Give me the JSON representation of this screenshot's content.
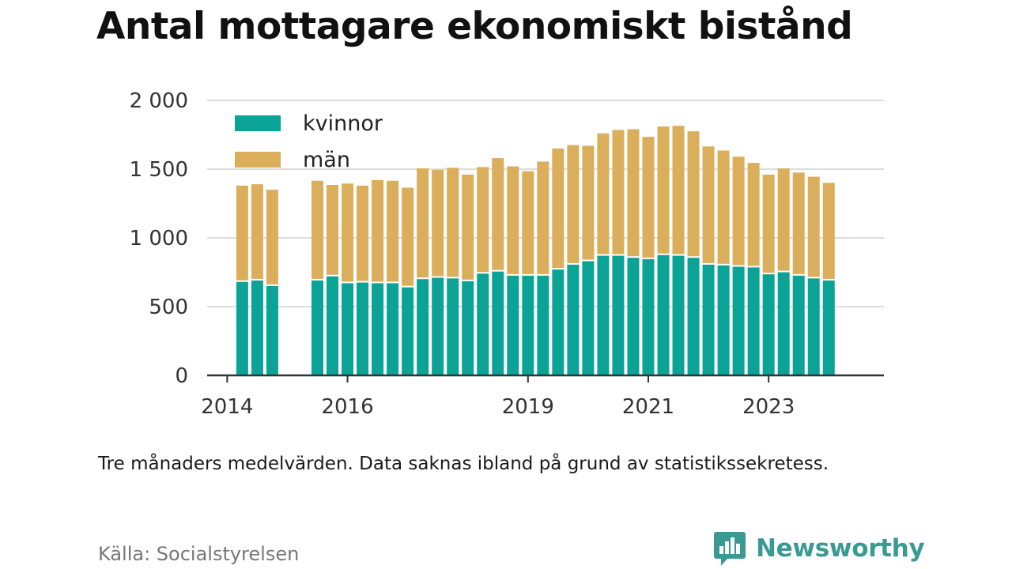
{
  "title": "Antal mottagare ekonomiskt bistånd",
  "note": "Tre månaders medelvärden. Data saknas ibland på grund av statistikssekretess.",
  "source": "Källa: Socialstyrelsen",
  "brand": {
    "name": "Newsworthy",
    "icon": "newsworthy-logo-icon",
    "color": "#3a9a93"
  },
  "colors": {
    "kvinnor": "#0aa396",
    "man": "#dbae5b",
    "grid": "#dddddd",
    "axis": "#333333"
  },
  "chart_data": {
    "type": "bar",
    "stacked": true,
    "title": "Antal mottagare ekonomiskt bistånd",
    "xlabel": "",
    "ylabel": "",
    "ylim": [
      0,
      2000
    ],
    "yticks": [
      0,
      500,
      1000,
      1500,
      2000
    ],
    "ytick_labels": [
      "0",
      "500",
      "1 000",
      "1 500",
      "2 000"
    ],
    "xticks": [
      {
        "label": "2014",
        "at": "2014-01"
      },
      {
        "label": "2016",
        "at": "2016-01"
      },
      {
        "label": "2019",
        "at": "2019-01"
      },
      {
        "label": "2021",
        "at": "2021-01"
      },
      {
        "label": "2023",
        "at": "2023-01"
      }
    ],
    "x_domain": [
      "2013-09",
      "2024-12"
    ],
    "grid": true,
    "legend_position": "top-left",
    "x": [
      "2014-04",
      "2014-07",
      "2014-10",
      "2015-01",
      "2015-04",
      "2015-07",
      "2015-10",
      "2016-01",
      "2016-04",
      "2016-07",
      "2016-10",
      "2017-01",
      "2017-04",
      "2017-07",
      "2017-10",
      "2018-01",
      "2018-04",
      "2018-07",
      "2018-10",
      "2019-01",
      "2019-04",
      "2019-07",
      "2019-10",
      "2020-01",
      "2020-04",
      "2020-07",
      "2020-10",
      "2021-01",
      "2021-04",
      "2021-07",
      "2021-10",
      "2022-01",
      "2022-04",
      "2022-07",
      "2022-10",
      "2023-01",
      "2023-04",
      "2023-07",
      "2023-10",
      "2024-01"
    ],
    "series": [
      {
        "name": "kvinnor",
        "color": "#0aa396",
        "values": [
          680,
          690,
          650,
          null,
          null,
          690,
          720,
          670,
          675,
          670,
          670,
          640,
          700,
          710,
          705,
          685,
          740,
          755,
          725,
          725,
          725,
          770,
          805,
          830,
          870,
          870,
          855,
          845,
          875,
          870,
          855,
          805,
          800,
          790,
          785,
          735,
          750,
          725,
          705,
          690
        ]
      },
      {
        "name": "män",
        "color": "#dbae5b",
        "values": [
          700,
          700,
          700,
          null,
          null,
          725,
          665,
          725,
          705,
          750,
          745,
          725,
          805,
          785,
          805,
          775,
          775,
          825,
          795,
          760,
          830,
          880,
          870,
          840,
          890,
          915,
          935,
          890,
          935,
          945,
          920,
          860,
          835,
          800,
          760,
          725,
          755,
          750,
          740,
          710
        ]
      }
    ]
  }
}
